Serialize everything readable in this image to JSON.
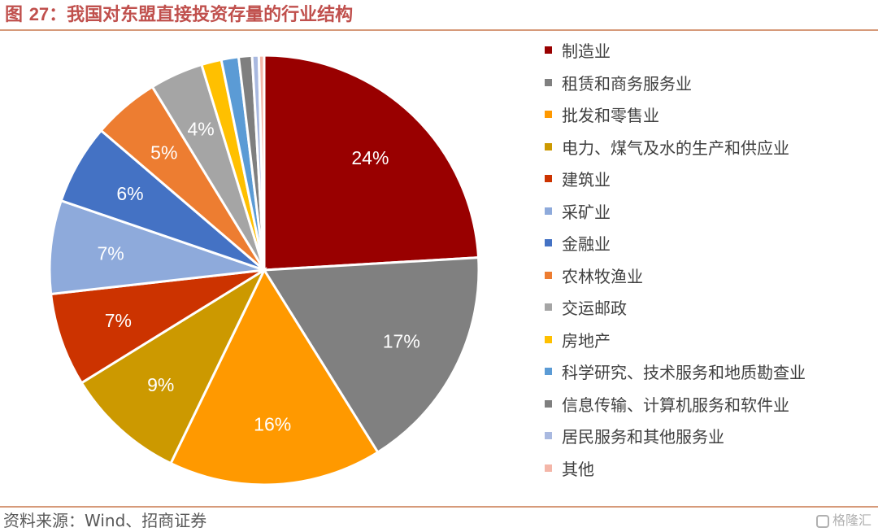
{
  "header": {
    "figure_label": "图",
    "figure_number": "27",
    "title_text": "：我国对东盟直接投资存量的行业结构"
  },
  "footer": {
    "source": "资料来源：Wind、招商证券",
    "watermark": "格隆汇"
  },
  "chart_data": {
    "type": "pie",
    "legend_position": "right",
    "start_angle_deg": 0,
    "direction": "clockwise",
    "slices": [
      {
        "label": "制造业",
        "value": 24,
        "display": "24%",
        "color": "#990000"
      },
      {
        "label": "租赁和商务服务业",
        "value": 17,
        "display": "17%",
        "color": "#808080"
      },
      {
        "label": "批发和零售业",
        "value": 16,
        "display": "16%",
        "color": "#ff9900"
      },
      {
        "label": "电力、煤气及水的生产和供应业",
        "value": 9,
        "display": "9%",
        "color": "#cc9900"
      },
      {
        "label": "建筑业",
        "value": 7,
        "display": "7%",
        "color": "#cc3300"
      },
      {
        "label": "采矿业",
        "value": 7,
        "display": "7%",
        "color": "#8eaadb"
      },
      {
        "label": "金融业",
        "value": 6,
        "display": "6%",
        "color": "#4472c4"
      },
      {
        "label": "农林牧渔业",
        "value": 5,
        "display": "5%",
        "color": "#ed7d31"
      },
      {
        "label": "交运邮政",
        "value": 4,
        "display": "4%",
        "color": "#a5a5a5"
      },
      {
        "label": "房地产",
        "value": 1.5,
        "display": "",
        "color": "#ffc000"
      },
      {
        "label": "科学研究、技术服务和地质勘查业",
        "value": 1.3,
        "display": "",
        "color": "#5b9bd5"
      },
      {
        "label": "信息传输、计算机服务和软件业",
        "value": 1.0,
        "display": "",
        "color": "#7f7f7f"
      },
      {
        "label": "居民服务和其他服务业",
        "value": 0.5,
        "display": "",
        "color": "#a9b9e0"
      },
      {
        "label": "其他",
        "value": 0.4,
        "display": "",
        "color": "#f4b6a8"
      }
    ]
  }
}
